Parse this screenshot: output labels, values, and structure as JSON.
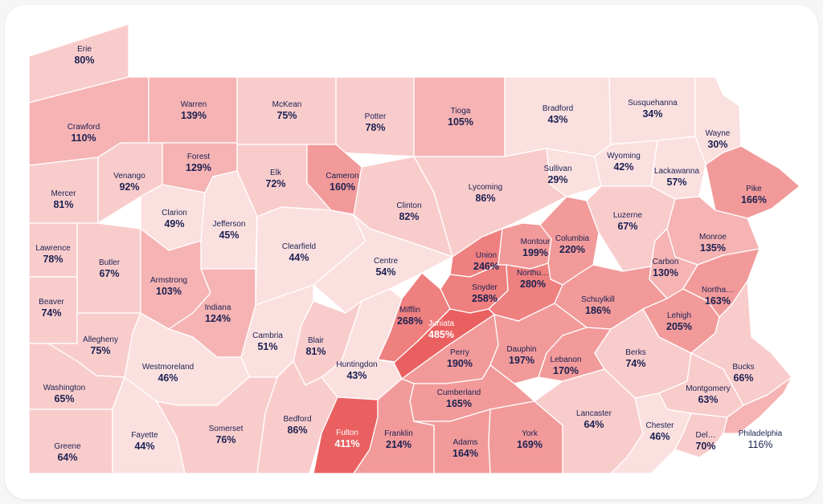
{
  "map": {
    "region": "Pennsylvania",
    "colors": {
      "background": "#ffffff",
      "border": "#ffffff",
      "label": "#1b2151",
      "scale": [
        "#fbe0e0",
        "#f9cccc",
        "#f6b3b3",
        "#f29a9a",
        "#ef8080",
        "#ea6060"
      ]
    },
    "counties": [
      {
        "id": "erie",
        "name": "Erie",
        "value": "80%",
        "pct": 80
      },
      {
        "id": "crawford",
        "name": "Crawford",
        "value": "110%",
        "pct": 110
      },
      {
        "id": "warren",
        "name": "Warren",
        "value": "139%",
        "pct": 139
      },
      {
        "id": "mckean",
        "name": "McKean",
        "value": "75%",
        "pct": 75
      },
      {
        "id": "potter",
        "name": "Potter",
        "value": "78%",
        "pct": 78
      },
      {
        "id": "tioga",
        "name": "Tioga",
        "value": "105%",
        "pct": 105
      },
      {
        "id": "bradford",
        "name": "Bradford",
        "value": "43%",
        "pct": 43
      },
      {
        "id": "susquehanna",
        "name": "Susquehanna",
        "value": "34%",
        "pct": 34
      },
      {
        "id": "wayne",
        "name": "Wayne",
        "value": "30%",
        "pct": 30
      },
      {
        "id": "mercer",
        "name": "Mercer",
        "value": "81%",
        "pct": 81
      },
      {
        "id": "venango",
        "name": "Venango",
        "value": "92%",
        "pct": 92
      },
      {
        "id": "forest",
        "name": "Forest",
        "value": "129%",
        "pct": 129
      },
      {
        "id": "elk",
        "name": "Elk",
        "value": "72%",
        "pct": 72
      },
      {
        "id": "cameron",
        "name": "Cameron",
        "value": "160%",
        "pct": 160
      },
      {
        "id": "clinton",
        "name": "Clinton",
        "value": "82%",
        "pct": 82
      },
      {
        "id": "lycoming",
        "name": "Lycoming",
        "value": "86%",
        "pct": 86
      },
      {
        "id": "sullivan",
        "name": "Sullivan",
        "value": "29%",
        "pct": 29
      },
      {
        "id": "wyoming",
        "name": "Wyoming",
        "value": "42%",
        "pct": 42
      },
      {
        "id": "lackawanna",
        "name": "Lackawanna",
        "value": "57%",
        "pct": 57
      },
      {
        "id": "pike",
        "name": "Pike",
        "value": "166%",
        "pct": 166
      },
      {
        "id": "lawrence",
        "name": "Lawrence",
        "value": "78%",
        "pct": 78
      },
      {
        "id": "butler",
        "name": "Butler",
        "value": "67%",
        "pct": 67
      },
      {
        "id": "clarion",
        "name": "Clarion",
        "value": "49%",
        "pct": 49
      },
      {
        "id": "jefferson",
        "name": "Jefferson",
        "value": "45%",
        "pct": 45
      },
      {
        "id": "clearfield",
        "name": "Clearfield",
        "value": "44%",
        "pct": 44
      },
      {
        "id": "centre",
        "name": "Centre",
        "value": "54%",
        "pct": 54
      },
      {
        "id": "union",
        "name": "Union",
        "value": "246%",
        "pct": 246
      },
      {
        "id": "montour",
        "name": "Montour",
        "value": "199%",
        "pct": 199
      },
      {
        "id": "columbia",
        "name": "Columbia",
        "value": "220%",
        "pct": 220
      },
      {
        "id": "luzerne",
        "name": "Luzerne",
        "value": "67%",
        "pct": 67
      },
      {
        "id": "monroe",
        "name": "Monroe",
        "value": "135%",
        "pct": 135
      },
      {
        "id": "beaver",
        "name": "Beaver",
        "value": "74%",
        "pct": 74
      },
      {
        "id": "armstrong",
        "name": "Armstrong",
        "value": "103%",
        "pct": 103
      },
      {
        "id": "indiana",
        "name": "Indiana",
        "value": "124%",
        "pct": 124
      },
      {
        "id": "snyder",
        "name": "Snyder",
        "value": "258%",
        "pct": 258
      },
      {
        "id": "northumberland",
        "name": "Northu…",
        "value": "280%",
        "pct": 280
      },
      {
        "id": "carbon",
        "name": "Carbon",
        "value": "130%",
        "pct": 130
      },
      {
        "id": "schuylkill",
        "name": "Schuylkill",
        "value": "186%",
        "pct": 186
      },
      {
        "id": "northampton",
        "name": "Northa…",
        "value": "163%",
        "pct": 163
      },
      {
        "id": "allegheny",
        "name": "Allegheny",
        "value": "75%",
        "pct": 75
      },
      {
        "id": "mifflin",
        "name": "Mifflin",
        "value": "268%",
        "pct": 268
      },
      {
        "id": "juniata",
        "name": "Juniata",
        "value": "485%",
        "pct": 485
      },
      {
        "id": "lehigh",
        "name": "Lehigh",
        "value": "205%",
        "pct": 205
      },
      {
        "id": "cambria",
        "name": "Cambria",
        "value": "51%",
        "pct": 51
      },
      {
        "id": "blair",
        "name": "Blair",
        "value": "81%",
        "pct": 81
      },
      {
        "id": "westmoreland",
        "name": "Westmoreland",
        "value": "46%",
        "pct": 46
      },
      {
        "id": "huntingdon",
        "name": "Huntingdon",
        "value": "43%",
        "pct": 43
      },
      {
        "id": "perry",
        "name": "Perry",
        "value": "190%",
        "pct": 190
      },
      {
        "id": "dauphin",
        "name": "Dauphin",
        "value": "197%",
        "pct": 197
      },
      {
        "id": "lebanon",
        "name": "Lebanon",
        "value": "170%",
        "pct": 170
      },
      {
        "id": "berks",
        "name": "Berks",
        "value": "74%",
        "pct": 74
      },
      {
        "id": "bucks",
        "name": "Bucks",
        "value": "66%",
        "pct": 66
      },
      {
        "id": "washington",
        "name": "Washington",
        "value": "65%",
        "pct": 65
      },
      {
        "id": "somerset",
        "name": "Somerset",
        "value": "76%",
        "pct": 76
      },
      {
        "id": "bedford",
        "name": "Bedford",
        "value": "86%",
        "pct": 86
      },
      {
        "id": "cumberland",
        "name": "Cumberland",
        "value": "165%",
        "pct": 165
      },
      {
        "id": "montgomery",
        "name": "Montgomery",
        "value": "63%",
        "pct": 63
      },
      {
        "id": "greene",
        "name": "Greene",
        "value": "64%",
        "pct": 64
      },
      {
        "id": "fayette",
        "name": "Fayette",
        "value": "44%",
        "pct": 44
      },
      {
        "id": "fulton",
        "name": "Fulton",
        "value": "411%",
        "pct": 411
      },
      {
        "id": "franklin",
        "name": "Franklin",
        "value": "214%",
        "pct": 214
      },
      {
        "id": "adams",
        "name": "Adams",
        "value": "164%",
        "pct": 164
      },
      {
        "id": "york",
        "name": "York",
        "value": "169%",
        "pct": 169
      },
      {
        "id": "lancaster",
        "name": "Lancaster",
        "value": "64%",
        "pct": 64
      },
      {
        "id": "chester",
        "name": "Chester",
        "value": "46%",
        "pct": 46
      },
      {
        "id": "delaware",
        "name": "Del…",
        "value": "70%",
        "pct": 70
      },
      {
        "id": "philadelphia",
        "name": "Philadelphia",
        "value": "116%",
        "pct": 116
      }
    ]
  }
}
